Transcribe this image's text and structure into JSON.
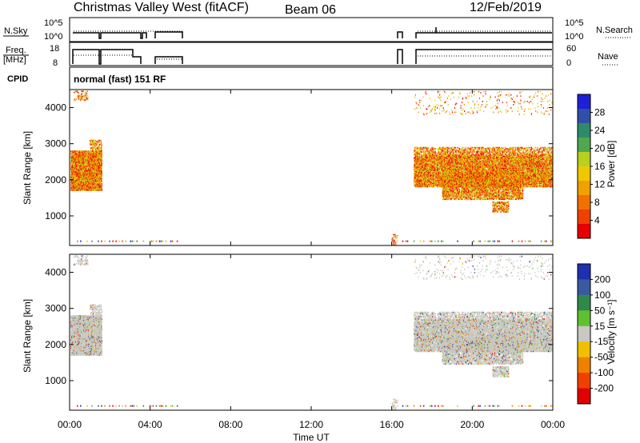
{
  "header": {
    "station": "Christmas Valley West (fitACF)",
    "beam": "Beam 06",
    "date": "12/Feb/2019"
  },
  "top_panels": {
    "nsky_label": "N.Sky",
    "freq_label_1": "Freq.",
    "freq_label_2": "[MHz]",
    "cpid_label": "CPID",
    "nsearch_label": "N.Search",
    "nave_label": "Nave",
    "nsky_ticks": [
      "10^5",
      "10^0"
    ],
    "nsearch_ticks": [
      "10^5",
      "10^0"
    ],
    "freq_ticks": [
      "18",
      "8"
    ],
    "nave_ticks": [
      "60",
      "0"
    ],
    "cpid_text": "normal (fast) 151 RF"
  },
  "chart_data": [
    {
      "type": "heatmap",
      "name": "power",
      "ylabel": "Slant Range [km]",
      "ylim": [
        180,
        4500
      ],
      "yticks": [
        "4000",
        "3000",
        "2000",
        "1000"
      ],
      "ytick_values": [
        4000,
        3000,
        2000,
        1000
      ],
      "colorbar_label": "Power [dB]",
      "colorbar_ticks": [
        "28",
        "24",
        "20",
        "16",
        "12",
        "8",
        "4"
      ],
      "colorbar_colors": [
        "#1f1fd8",
        "#2f4fa8",
        "#2f8a6a",
        "#4fa84f",
        "#b8d020",
        "#f0c800",
        "#f0a000",
        "#f07000",
        "#f04000",
        "#e80000"
      ]
    },
    {
      "type": "heatmap",
      "name": "velocity",
      "ylabel": "Slant Range [km]",
      "xlabel": "Time UT",
      "ylim": [
        180,
        4500
      ],
      "yticks": [
        "4000",
        "3000",
        "2000",
        "1000"
      ],
      "ytick_values": [
        4000,
        3000,
        2000,
        1000
      ],
      "xticks": [
        "00:00",
        "04:00",
        "08:00",
        "12:00",
        "16:00",
        "20:00",
        "00:00"
      ],
      "xtick_values": [
        0,
        4,
        8,
        12,
        16,
        20,
        24
      ],
      "colorbar_label": "Velocity [m s⁻¹]",
      "colorbar_ticks": [
        "200",
        "100",
        "50",
        "15",
        "-15",
        "-50",
        "-100",
        "-200"
      ],
      "colorbar_colors": [
        "#1f2fb0",
        "#3a5aa0",
        "#2f8a4a",
        "#60c030",
        "#c8c8c0",
        "#f0c000",
        "#f08000",
        "#f04000",
        "#e00000"
      ]
    }
  ]
}
